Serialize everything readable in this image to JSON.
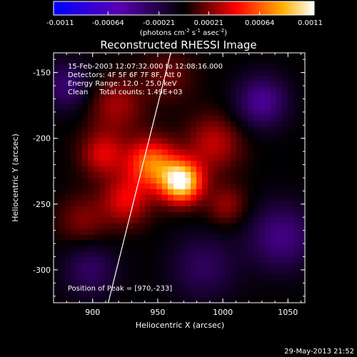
{
  "chart_data": {
    "type": "heatmap",
    "title": "Reconstructed RHESSI Image",
    "xlabel": "Heliocentric X (arcsec)",
    "ylabel": "Heliocentric Y (arcsec)",
    "xlim": [
      870,
      1063
    ],
    "ylim": [
      -325,
      -135
    ],
    "x_ticks": [
      900,
      950,
      1000,
      1050
    ],
    "y_ticks": [
      -150,
      -200,
      -250,
      -300
    ],
    "colorbar": {
      "range": [
        -0.0011,
        0.0011
      ],
      "tick_values": [
        -0.0011,
        -0.00064,
        -0.00021,
        0.00021,
        0.00064,
        0.0011
      ],
      "tick_labels": [
        "-0.0011",
        "-0.00064",
        "-0.00021",
        "0.00021",
        "0.00064",
        "0.0011"
      ],
      "unit_prefix": "(photons cm",
      "unit_sup1": "-2",
      "unit_mid1": " s",
      "unit_sup2": "-1",
      "unit_mid2": " asec",
      "unit_sup3": "-2",
      "unit_suffix": ")"
    },
    "annotations": [
      "15-Feb-2003 12:07:32.000 to 12:08:16.000",
      "Detectors: 4F 5F 6F 7F 8F, Att 0",
      "Energy Range: 12.0 - 25.0 keV",
      "Clean     Total counts: 1.49E+03"
    ],
    "peak_label": "Position of Peak = [970,-233]",
    "peak": [
      970,
      -233
    ],
    "sources": [
      {
        "x": 968,
        "y": -233,
        "sigma": 11,
        "amp": 0.0011
      },
      {
        "x": 945,
        "y": -219,
        "sigma": 13,
        "amp": 0.00068
      },
      {
        "x": 926,
        "y": -247,
        "sigma": 13,
        "amp": 0.0004
      },
      {
        "x": 993,
        "y": -204,
        "sigma": 15,
        "amp": 0.00033
      },
      {
        "x": 918,
        "y": -175,
        "sigma": 15,
        "amp": 0.00028
      },
      {
        "x": 908,
        "y": -212,
        "sigma": 12,
        "amp": 0.00038
      },
      {
        "x": 1003,
        "y": -251,
        "sigma": 11,
        "amp": 0.00026
      },
      {
        "x": 958,
        "y": -152,
        "sigma": 14,
        "amp": 0.00018
      },
      {
        "x": 893,
        "y": -263,
        "sigma": 14,
        "amp": 0.00022
      },
      {
        "x": 1030,
        "y": -172,
        "sigma": 14,
        "amp": -0.00045
      },
      {
        "x": 1045,
        "y": -275,
        "sigma": 18,
        "amp": -0.0004
      },
      {
        "x": 880,
        "y": -160,
        "sigma": 13,
        "amp": -0.00035
      },
      {
        "x": 985,
        "y": -298,
        "sigma": 18,
        "amp": -0.00028
      },
      {
        "x": 898,
        "y": -300,
        "sigma": 15,
        "amp": -0.0003
      }
    ],
    "limb_line": [
      [
        912,
        -325
      ],
      [
        960,
        -135
      ]
    ]
  },
  "footer": {
    "timestamp": "29-May-2013 21:52"
  }
}
